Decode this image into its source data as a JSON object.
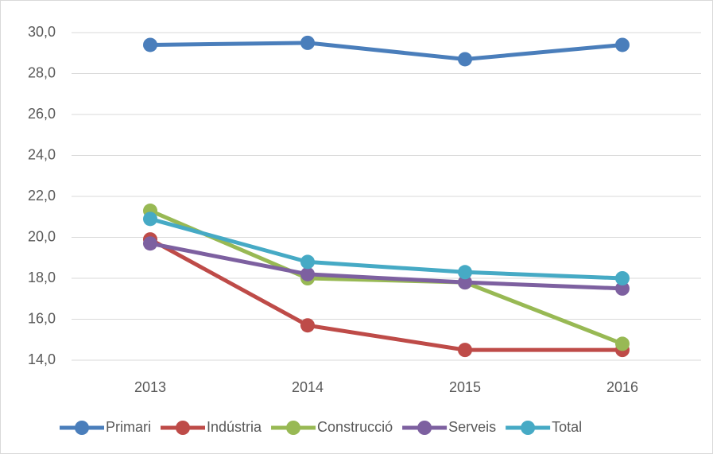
{
  "chart_data": {
    "type": "line",
    "categories": [
      "2013",
      "2014",
      "2015",
      "2016"
    ],
    "series": [
      {
        "name": "Primari",
        "color": "#4a7ebb",
        "values": [
          29.4,
          29.5,
          28.7,
          29.4
        ]
      },
      {
        "name": "Indústria",
        "color": "#be4b48",
        "values": [
          19.9,
          15.7,
          14.5,
          14.5
        ]
      },
      {
        "name": "Construcció",
        "color": "#98b954",
        "values": [
          21.3,
          18.0,
          17.8,
          14.8
        ]
      },
      {
        "name": "Serveis",
        "color": "#7d60a0",
        "values": [
          19.7,
          18.2,
          17.8,
          17.5
        ]
      },
      {
        "name": "Total",
        "color": "#46aac5",
        "values": [
          20.9,
          18.8,
          18.3,
          18.0
        ]
      }
    ],
    "ylim": [
      14,
      30
    ],
    "yticks": [
      {
        "value": 14,
        "label": "14,0"
      },
      {
        "value": 16,
        "label": "16,0"
      },
      {
        "value": 18,
        "label": "18,0"
      },
      {
        "value": 20,
        "label": "20,0"
      },
      {
        "value": 22,
        "label": "22,0"
      },
      {
        "value": 24,
        "label": "24,0"
      },
      {
        "value": 26,
        "label": "26,0"
      },
      {
        "value": 28,
        "label": "28,0"
      },
      {
        "value": 30,
        "label": "30,0"
      }
    ],
    "grid": true,
    "legend": "bottom"
  }
}
